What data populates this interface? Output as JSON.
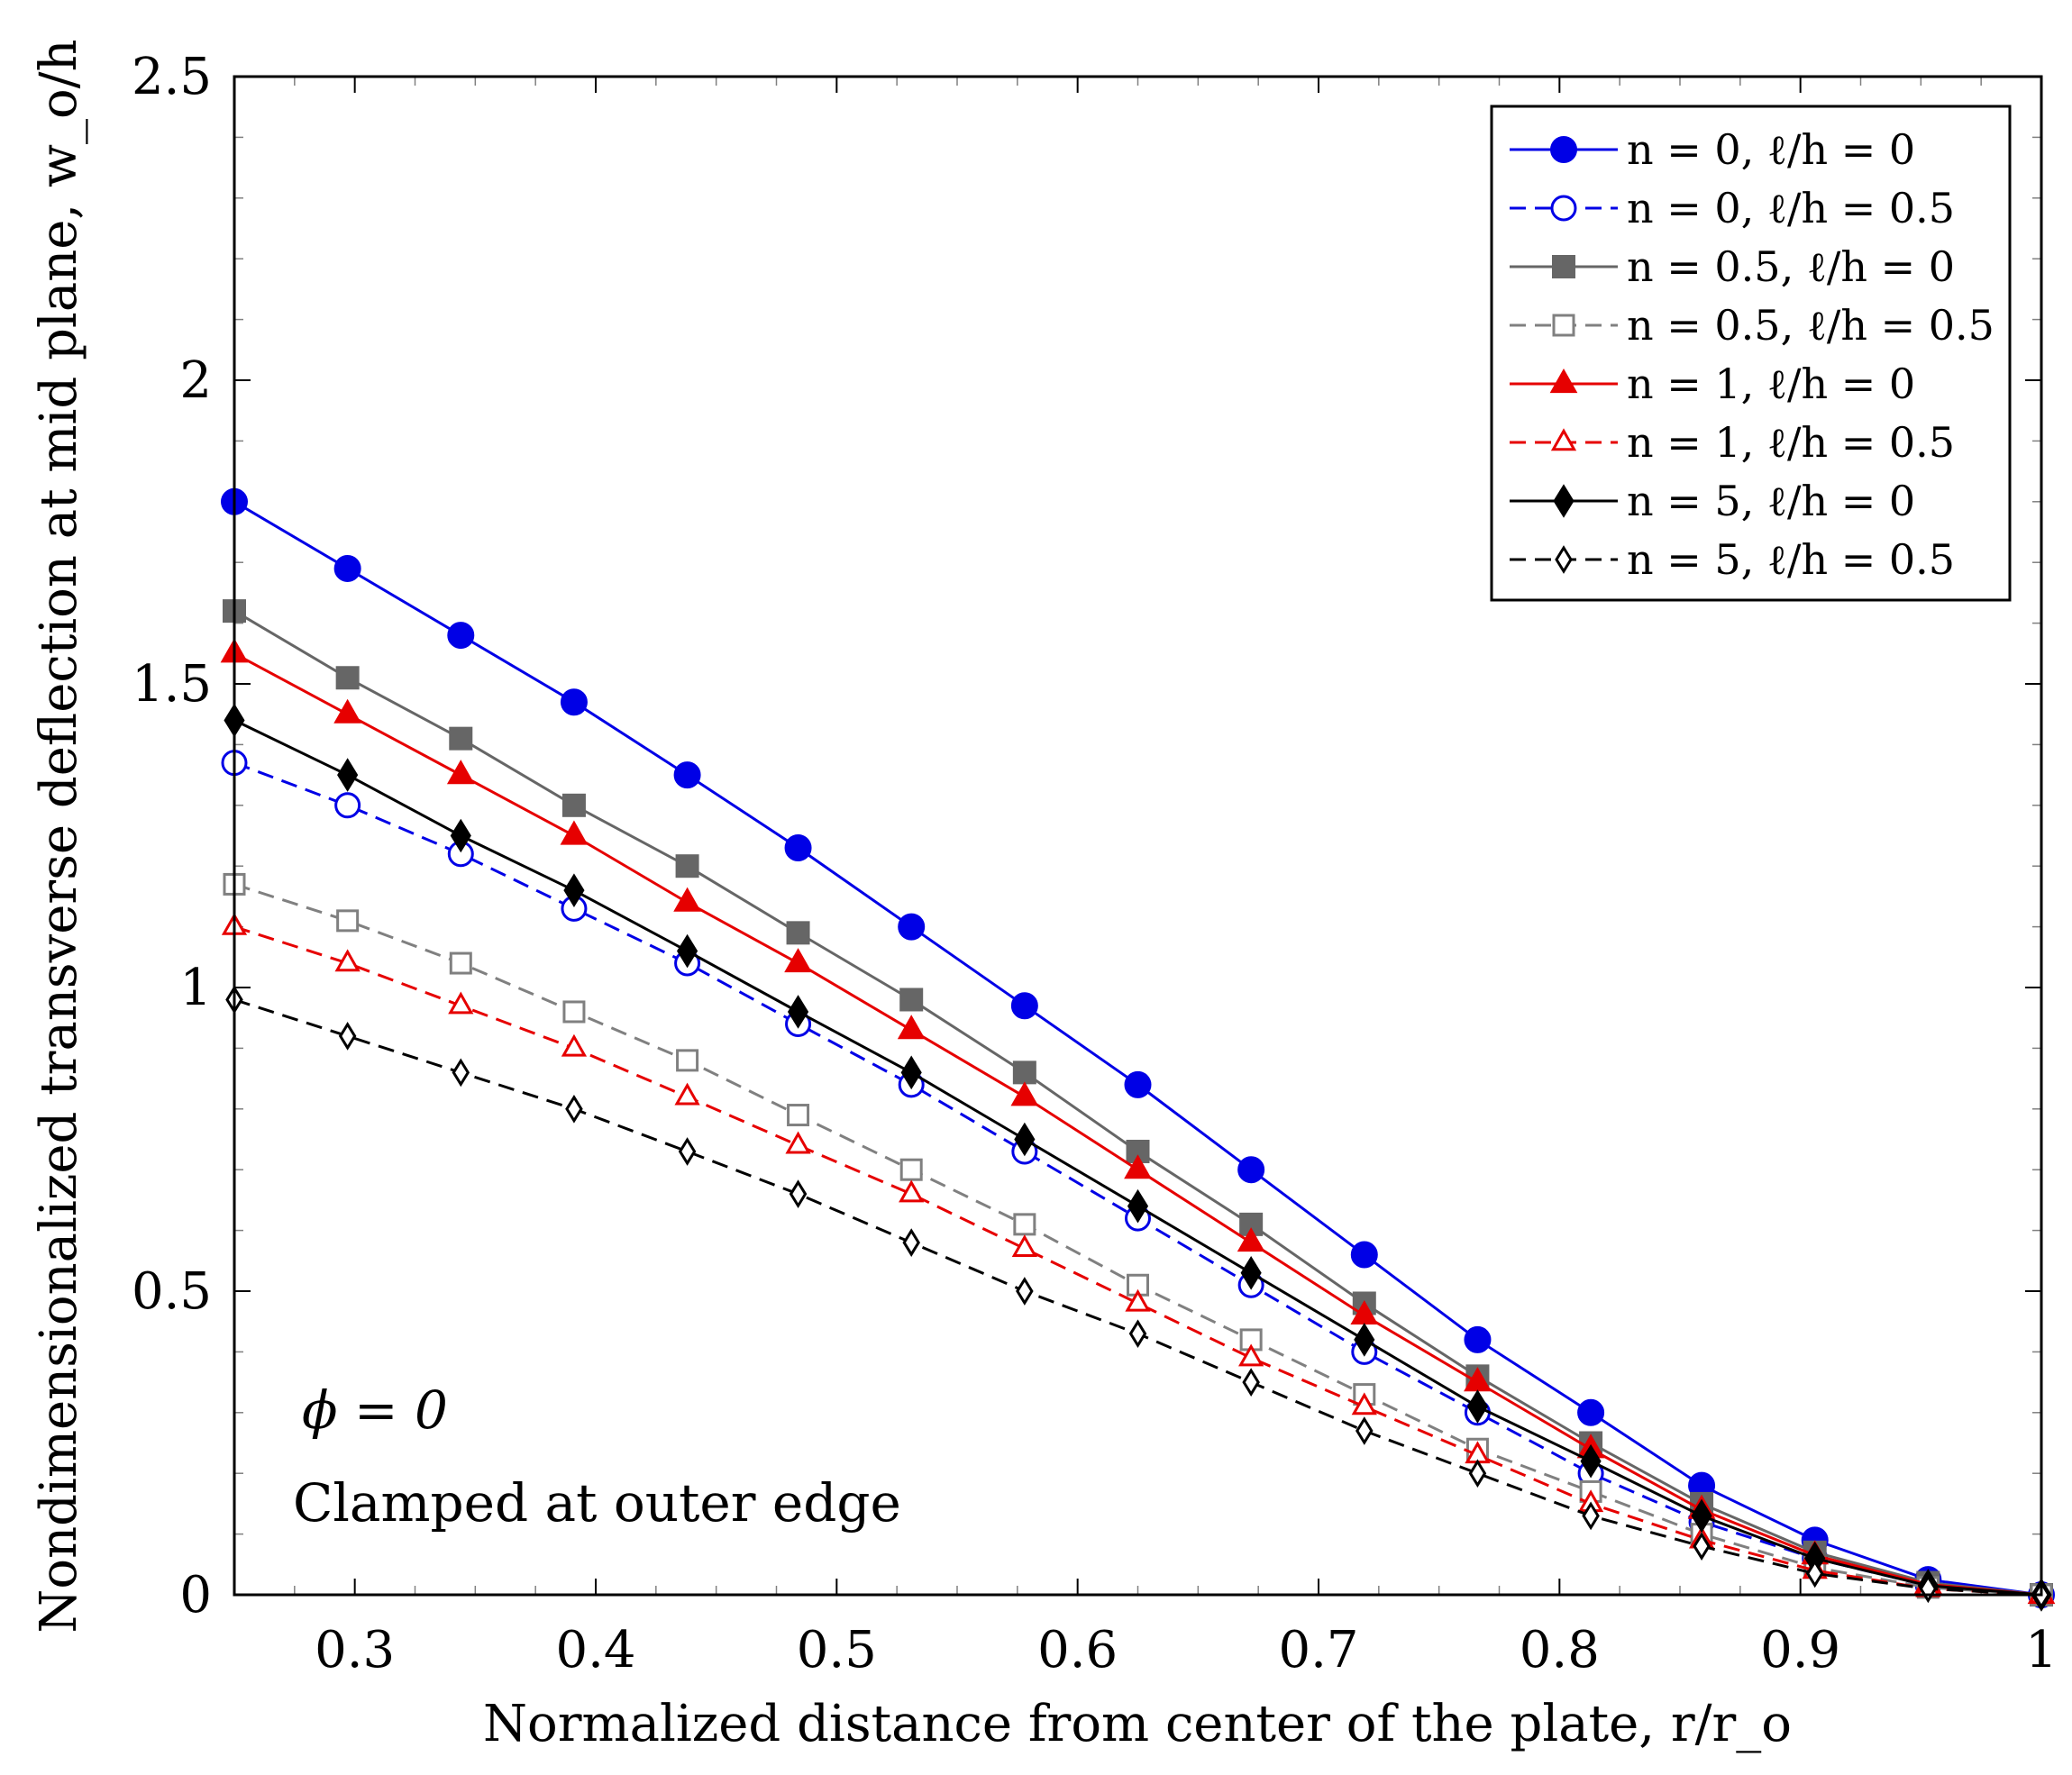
{
  "chart_data": {
    "type": "line",
    "xlabel": "Normalized distance from center of the plate, r/r_o",
    "ylabel": "Nondimensionalized transverse deflection at mid plane, w_o/h",
    "xlim": [
      0.25,
      1.0
    ],
    "ylim": [
      0,
      2.5
    ],
    "xticks": [
      0.3,
      0.4,
      0.5,
      0.6,
      0.7,
      0.8,
      0.9,
      1
    ],
    "xtick_labels": [
      "0.3",
      "0.4",
      "0.5",
      "0.6",
      "0.7",
      "0.8",
      "0.9",
      "1"
    ],
    "yticks": [
      0,
      0.5,
      1,
      1.5,
      2,
      2.5
    ],
    "ytick_labels": [
      "0",
      "0.5",
      "1",
      "1.5",
      "2",
      "2.5"
    ],
    "legend_position": "top-right",
    "annotations": [
      "ϕ = 0",
      "Clamped at outer edge"
    ],
    "x": [
      0.25,
      0.297,
      0.344,
      0.391,
      0.438,
      0.484,
      0.531,
      0.578,
      0.625,
      0.672,
      0.719,
      0.766,
      0.813,
      0.859,
      0.906,
      0.953,
      1.0
    ],
    "series": [
      {
        "name": "n = 0,   ℓ/h = 0",
        "color": "#0000e6",
        "dash": false,
        "marker": "circle",
        "filled": true,
        "values": [
          1.8,
          1.69,
          1.58,
          1.47,
          1.35,
          1.23,
          1.1,
          0.97,
          0.84,
          0.7,
          0.56,
          0.42,
          0.3,
          0.18,
          0.09,
          0.025,
          0.0
        ]
      },
      {
        "name": "n = 0,   ℓ/h = 0.5",
        "color": "#0000e6",
        "dash": true,
        "marker": "circle",
        "filled": false,
        "values": [
          1.37,
          1.3,
          1.22,
          1.13,
          1.04,
          0.94,
          0.84,
          0.73,
          0.62,
          0.51,
          0.4,
          0.3,
          0.2,
          0.12,
          0.06,
          0.015,
          0.0
        ]
      },
      {
        "name": "n = 0.5, ℓ/h = 0",
        "color": "#666666",
        "dash": false,
        "marker": "square",
        "filled": true,
        "values": [
          1.62,
          1.51,
          1.41,
          1.3,
          1.2,
          1.09,
          0.98,
          0.86,
          0.73,
          0.61,
          0.48,
          0.36,
          0.25,
          0.15,
          0.07,
          0.02,
          0.0
        ]
      },
      {
        "name": "n = 0.5, ℓ/h = 0.5",
        "color": "#808080",
        "dash": true,
        "marker": "square",
        "filled": false,
        "values": [
          1.17,
          1.11,
          1.04,
          0.96,
          0.88,
          0.79,
          0.7,
          0.61,
          0.51,
          0.42,
          0.33,
          0.24,
          0.17,
          0.1,
          0.045,
          0.012,
          0.0
        ]
      },
      {
        "name": "n = 1,   ℓ/h = 0",
        "color": "#e60000",
        "dash": false,
        "marker": "triangle",
        "filled": true,
        "values": [
          1.55,
          1.45,
          1.35,
          1.25,
          1.14,
          1.04,
          0.93,
          0.82,
          0.7,
          0.58,
          0.46,
          0.35,
          0.24,
          0.14,
          0.065,
          0.017,
          0.0
        ]
      },
      {
        "name": "n = 1,   ℓ/h = 0.5",
        "color": "#e60000",
        "dash": true,
        "marker": "triangle",
        "filled": false,
        "values": [
          1.1,
          1.04,
          0.97,
          0.9,
          0.82,
          0.74,
          0.66,
          0.57,
          0.48,
          0.39,
          0.31,
          0.23,
          0.15,
          0.09,
          0.04,
          0.01,
          0.0
        ]
      },
      {
        "name": "n = 5,   ℓ/h = 0",
        "color": "#000000",
        "dash": false,
        "marker": "diamond",
        "filled": true,
        "values": [
          1.44,
          1.35,
          1.25,
          1.16,
          1.06,
          0.96,
          0.86,
          0.75,
          0.64,
          0.53,
          0.42,
          0.31,
          0.22,
          0.13,
          0.06,
          0.015,
          0.0
        ]
      },
      {
        "name": "n = 5,   ℓ/h = 0.5",
        "color": "#000000",
        "dash": true,
        "marker": "diamond",
        "filled": false,
        "values": [
          0.98,
          0.92,
          0.86,
          0.8,
          0.73,
          0.66,
          0.58,
          0.5,
          0.43,
          0.35,
          0.27,
          0.2,
          0.13,
          0.08,
          0.035,
          0.01,
          0.0
        ]
      }
    ]
  }
}
